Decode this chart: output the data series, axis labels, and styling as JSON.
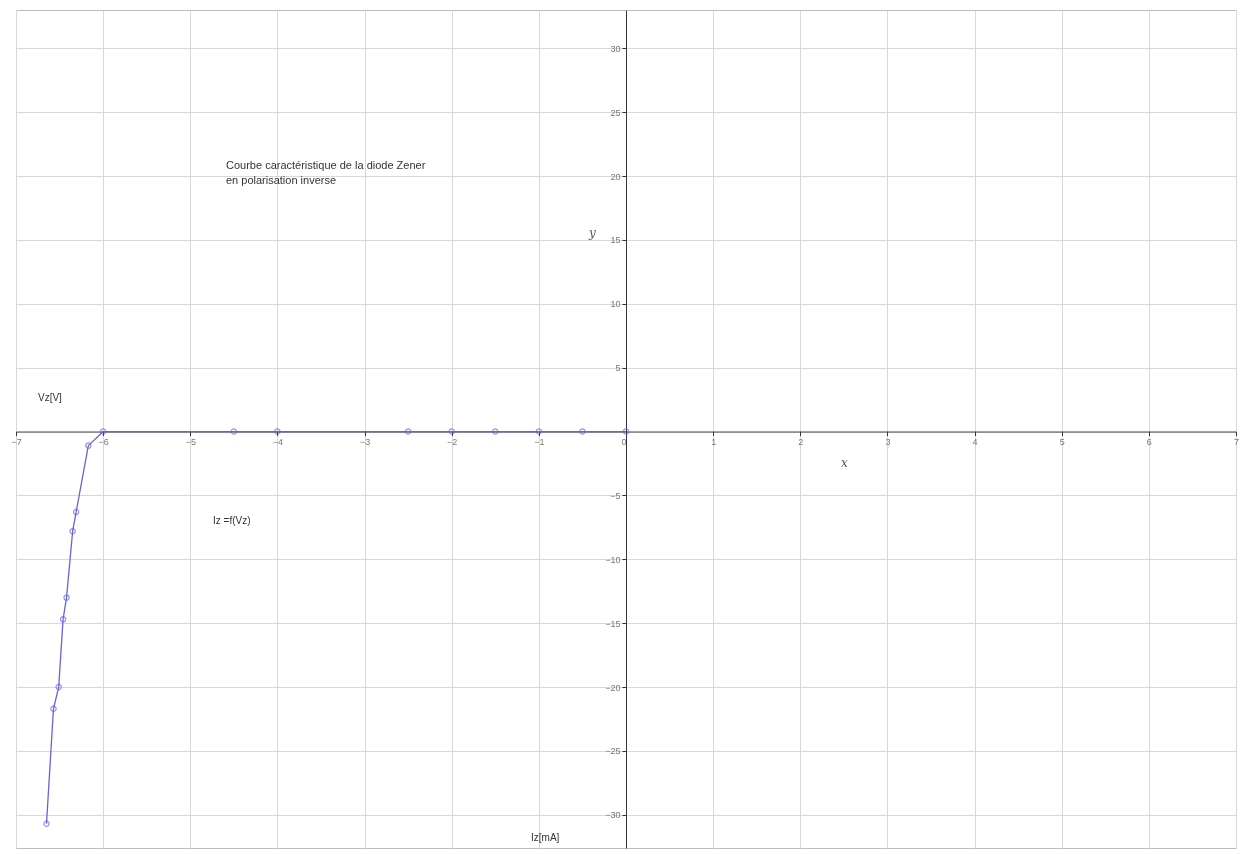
{
  "chart_data": {
    "type": "line",
    "title": [
      "Courbe  caractéristique de la diode Zener",
      "en polarisation inverse"
    ],
    "xlabel": "x",
    "ylabel": "y",
    "annotations": [
      "Vz[V]",
      "Iz[mA]",
      "Iz =f(Vz)"
    ],
    "series": [
      {
        "color": "#6464dc",
        "x": [
          -6.65,
          -6.57,
          -6.51,
          -6.46,
          -6.42,
          -6.35,
          -6.31,
          -6.17,
          -6,
          -4.5,
          -4,
          -2.5,
          -2,
          -1.5,
          -1,
          -0.5,
          0
        ],
        "values": [
          -30.7,
          -21.7,
          -20,
          -14.7,
          -13,
          -7.8,
          -6.3,
          -1.1,
          0,
          0,
          0,
          0,
          0,
          0,
          0,
          0,
          0
        ]
      }
    ],
    "xlim": [
      -7,
      7
    ],
    "ylim": [
      -32.6,
      33
    ],
    "xticks": [
      -7,
      -6,
      -5,
      -4,
      -3,
      -2,
      -1,
      0,
      1,
      2,
      3,
      4,
      5,
      6,
      7
    ],
    "yticks": [
      -30,
      -25,
      -20,
      -15,
      -10,
      -5,
      5,
      10,
      15,
      20,
      25,
      30
    ],
    "grid": true,
    "marker": "circle",
    "line_style": "solid",
    "legend": false
  }
}
